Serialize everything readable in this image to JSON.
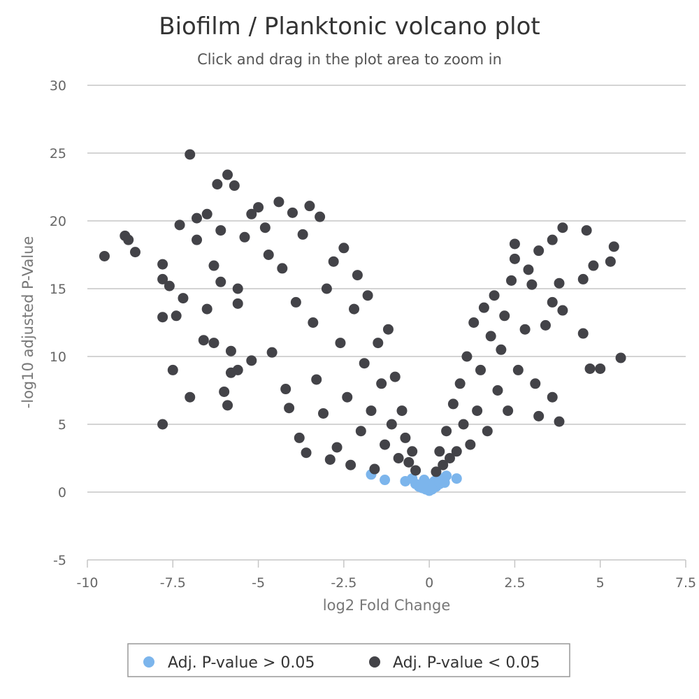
{
  "chart_data": {
    "type": "scatter",
    "title": "Biofilm / Planktonic volcano plot",
    "subtitle": "Click and drag in the plot area to zoom in",
    "xlabel": "log2 Fold Change",
    "ylabel": "-log10 adjusted P-Value",
    "xlim": [
      -10,
      7.5
    ],
    "ylim": [
      -5,
      30
    ],
    "x_ticks": [
      "-10",
      "-7.5",
      "-5",
      "-2.5",
      "0",
      "2.5",
      "5",
      "7.5"
    ],
    "y_ticks": [
      "-5",
      "0",
      "5",
      "10",
      "15",
      "20",
      "25",
      "30"
    ],
    "grid": true,
    "legend_position": "bottom-center",
    "series": [
      {
        "name": "Adj. P-value > 0.05",
        "color": "#7cb5ec",
        "points": [
          [
            -1.7,
            1.3
          ],
          [
            -1.3,
            0.9
          ],
          [
            -0.7,
            0.8
          ],
          [
            -0.5,
            1.0
          ],
          [
            -0.4,
            0.6
          ],
          [
            -0.3,
            0.4
          ],
          [
            -0.2,
            0.3
          ],
          [
            -0.15,
            0.9
          ],
          [
            -0.1,
            0.2
          ],
          [
            0.0,
            0.1
          ],
          [
            0.05,
            0.5
          ],
          [
            0.1,
            0.3
          ],
          [
            0.15,
            0.8
          ],
          [
            0.2,
            0.4
          ],
          [
            0.25,
            1.1
          ],
          [
            0.3,
            0.6
          ],
          [
            0.45,
            0.7
          ],
          [
            0.5,
            1.2
          ],
          [
            0.8,
            1.0
          ],
          [
            -0.05,
            0.6
          ],
          [
            0.08,
            0.2
          ],
          [
            -0.25,
            0.5
          ]
        ]
      },
      {
        "name": "Adj. P-value < 0.05",
        "color": "#434348",
        "points": [
          [
            -9.5,
            17.4
          ],
          [
            -8.9,
            18.9
          ],
          [
            -8.8,
            18.6
          ],
          [
            -8.6,
            17.7
          ],
          [
            -7.8,
            16.8
          ],
          [
            -7.8,
            15.7
          ],
          [
            -7.8,
            12.9
          ],
          [
            -7.8,
            5.0
          ],
          [
            -7.6,
            15.2
          ],
          [
            -7.5,
            9.0
          ],
          [
            -7.4,
            13.0
          ],
          [
            -7.3,
            19.7
          ],
          [
            -7.2,
            14.3
          ],
          [
            -7.0,
            24.9
          ],
          [
            -7.0,
            7.0
          ],
          [
            -6.8,
            20.2
          ],
          [
            -6.8,
            18.6
          ],
          [
            -6.6,
            11.2
          ],
          [
            -6.5,
            20.5
          ],
          [
            -6.5,
            13.5
          ],
          [
            -6.3,
            16.7
          ],
          [
            -6.3,
            11.0
          ],
          [
            -6.2,
            22.7
          ],
          [
            -6.1,
            19.3
          ],
          [
            -6.1,
            15.5
          ],
          [
            -6.0,
            7.4
          ],
          [
            -5.9,
            6.4
          ],
          [
            -5.9,
            23.4
          ],
          [
            -5.8,
            10.4
          ],
          [
            -5.8,
            8.8
          ],
          [
            -5.7,
            22.6
          ],
          [
            -5.6,
            15.0
          ],
          [
            -5.6,
            13.9
          ],
          [
            -5.6,
            9.0
          ],
          [
            -5.4,
            18.8
          ],
          [
            -5.2,
            9.7
          ],
          [
            -5.2,
            20.5
          ],
          [
            -5.0,
            21.0
          ],
          [
            -4.8,
            19.5
          ],
          [
            -4.7,
            17.5
          ],
          [
            -4.6,
            10.3
          ],
          [
            -4.4,
            21.4
          ],
          [
            -4.3,
            16.5
          ],
          [
            -4.2,
            7.6
          ],
          [
            -4.1,
            6.2
          ],
          [
            -4.0,
            20.6
          ],
          [
            -3.9,
            14.0
          ],
          [
            -3.8,
            4.0
          ],
          [
            -3.7,
            19.0
          ],
          [
            -3.6,
            2.9
          ],
          [
            -3.5,
            21.1
          ],
          [
            -3.4,
            12.5
          ],
          [
            -3.3,
            8.3
          ],
          [
            -3.2,
            20.3
          ],
          [
            -3.1,
            5.8
          ],
          [
            -3.0,
            15.0
          ],
          [
            -2.9,
            2.4
          ],
          [
            -2.8,
            17.0
          ],
          [
            -2.7,
            3.3
          ],
          [
            -2.6,
            11.0
          ],
          [
            -2.5,
            18.0
          ],
          [
            -2.4,
            7.0
          ],
          [
            -2.3,
            2.0
          ],
          [
            -2.2,
            13.5
          ],
          [
            -2.1,
            16.0
          ],
          [
            -2.0,
            4.5
          ],
          [
            -1.9,
            9.5
          ],
          [
            -1.8,
            14.5
          ],
          [
            -1.7,
            6.0
          ],
          [
            -1.6,
            1.7
          ],
          [
            -1.5,
            11.0
          ],
          [
            -1.4,
            8.0
          ],
          [
            -1.3,
            3.5
          ],
          [
            -1.2,
            12.0
          ],
          [
            -1.1,
            5.0
          ],
          [
            -1.0,
            8.5
          ],
          [
            -0.9,
            2.5
          ],
          [
            -0.8,
            6.0
          ],
          [
            -0.7,
            4.0
          ],
          [
            -0.6,
            2.2
          ],
          [
            -0.5,
            3.0
          ],
          [
            -0.4,
            1.6
          ],
          [
            0.2,
            1.5
          ],
          [
            0.3,
            3.0
          ],
          [
            0.4,
            2.0
          ],
          [
            0.5,
            4.5
          ],
          [
            0.6,
            2.5
          ],
          [
            0.7,
            6.5
          ],
          [
            0.8,
            3.0
          ],
          [
            0.9,
            8.0
          ],
          [
            1.0,
            5.0
          ],
          [
            1.1,
            10.0
          ],
          [
            1.2,
            3.5
          ],
          [
            1.3,
            12.5
          ],
          [
            1.4,
            6.0
          ],
          [
            1.5,
            9.0
          ],
          [
            1.6,
            13.6
          ],
          [
            1.7,
            4.5
          ],
          [
            1.8,
            11.5
          ],
          [
            1.9,
            14.5
          ],
          [
            2.0,
            7.5
          ],
          [
            2.1,
            10.5
          ],
          [
            2.2,
            13.0
          ],
          [
            2.3,
            6.0
          ],
          [
            2.4,
            15.6
          ],
          [
            2.5,
            18.3
          ],
          [
            2.5,
            17.2
          ],
          [
            2.6,
            9.0
          ],
          [
            2.8,
            12.0
          ],
          [
            2.9,
            16.4
          ],
          [
            3.0,
            15.3
          ],
          [
            3.1,
            8.0
          ],
          [
            3.2,
            17.8
          ],
          [
            3.2,
            5.6
          ],
          [
            3.4,
            12.3
          ],
          [
            3.6,
            18.6
          ],
          [
            3.6,
            14.0
          ],
          [
            3.6,
            7.0
          ],
          [
            3.8,
            15.4
          ],
          [
            3.8,
            5.2
          ],
          [
            3.9,
            13.4
          ],
          [
            3.9,
            19.5
          ],
          [
            4.5,
            15.7
          ],
          [
            4.5,
            11.7
          ],
          [
            4.6,
            19.3
          ],
          [
            4.7,
            9.1
          ],
          [
            4.8,
            16.7
          ],
          [
            5.0,
            9.1
          ],
          [
            5.3,
            17.0
          ],
          [
            5.4,
            18.1
          ],
          [
            5.6,
            9.9
          ]
        ]
      }
    ]
  }
}
